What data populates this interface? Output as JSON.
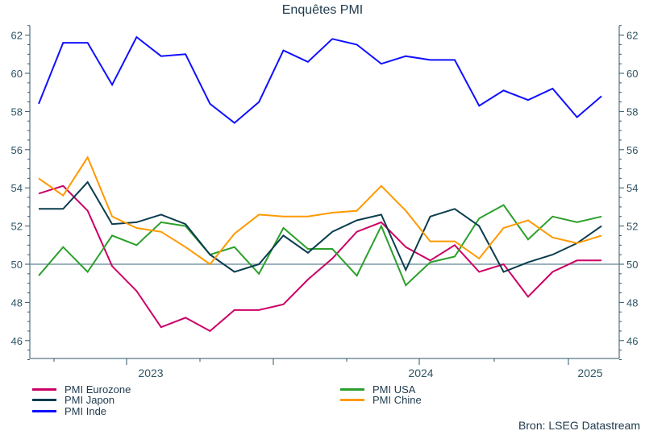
{
  "chart_data": {
    "type": "line",
    "title": "Enquêtes PMI",
    "x": [
      "2023-03",
      "2023-04",
      "2023-05",
      "2023-06",
      "2023-07",
      "2023-08",
      "2023-09",
      "2023-10",
      "2023-11",
      "2023-12",
      "2024-01",
      "2024-02",
      "2024-03",
      "2024-04",
      "2024-05",
      "2024-06",
      "2024-07",
      "2024-08",
      "2024-09",
      "2024-10",
      "2024-11",
      "2024-12",
      "2025-01",
      "2025-02"
    ],
    "x_tick_labels": [
      "2023",
      "2024",
      "2025"
    ],
    "ylim": [
      45,
      62.5
    ],
    "y_ticks": [
      46,
      48,
      50,
      52,
      54,
      56,
      58,
      60,
      62
    ],
    "reference_line": 50,
    "grid": false,
    "legend_position": "bottom",
    "series": [
      {
        "name": "PMI Eurozone",
        "color": "#cc0066",
        "values": [
          53.7,
          54.1,
          52.8,
          49.9,
          48.6,
          46.7,
          47.2,
          46.5,
          47.6,
          47.6,
          47.9,
          49.2,
          50.3,
          51.7,
          52.2,
          50.9,
          50.2,
          51.0,
          49.6,
          50.0,
          48.3,
          49.6,
          50.2,
          50.2
        ]
      },
      {
        "name": "PMI USA",
        "color": "#2ca02c",
        "values": [
          49.4,
          50.9,
          49.6,
          51.5,
          51.0,
          52.2,
          52.0,
          50.5,
          50.9,
          49.5,
          51.9,
          50.8,
          50.8,
          49.4,
          52.0,
          48.9,
          50.1,
          50.4,
          52.4,
          53.1,
          51.3,
          52.5,
          52.2,
          52.5
        ]
      },
      {
        "name": "PMI Japon",
        "color": "#0b3d4f",
        "values": [
          52.9,
          52.9,
          54.3,
          52.1,
          52.2,
          52.6,
          52.1,
          50.5,
          49.6,
          50.0,
          51.5,
          50.6,
          51.7,
          52.3,
          52.6,
          49.7,
          52.5,
          52.9,
          52.0,
          49.6,
          50.1,
          50.5,
          51.1,
          52.0
        ]
      },
      {
        "name": "PMI Chine",
        "color": "#ff9900",
        "values": [
          54.5,
          53.6,
          55.6,
          52.5,
          51.9,
          51.7,
          50.9,
          50.0,
          51.6,
          52.6,
          52.5,
          52.5,
          52.7,
          52.8,
          54.1,
          52.8,
          51.2,
          51.2,
          50.3,
          51.9,
          52.3,
          51.4,
          51.1,
          51.5
        ]
      },
      {
        "name": "PMI Inde",
        "color": "#1010ff",
        "values": [
          58.4,
          61.6,
          61.6,
          59.4,
          61.9,
          60.9,
          61.0,
          58.4,
          57.4,
          58.5,
          61.2,
          60.6,
          61.8,
          61.5,
          60.5,
          60.9,
          60.7,
          60.7,
          58.3,
          59.1,
          58.6,
          59.2,
          57.7,
          58.8
        ]
      }
    ]
  },
  "source": "Bron: LSEG Datastream"
}
